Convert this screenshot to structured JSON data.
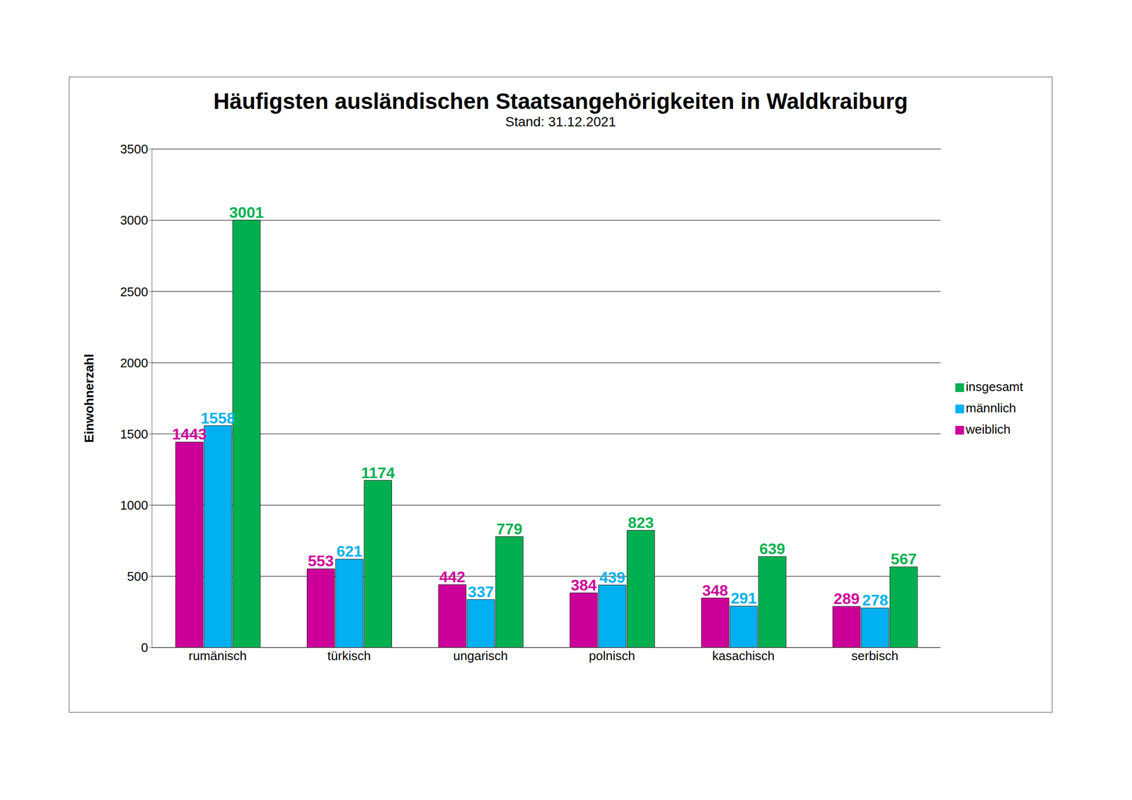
{
  "chart_data": {
    "type": "bar",
    "title": "Häufigsten ausländischen Staatsangehörigkeiten in Waldkraiburg",
    "subtitle": "Stand: 31.12.2021",
    "y_label": "Einwohnerzahl",
    "categories": [
      "rumänisch",
      "türkisch",
      "ungarisch",
      "polnisch",
      "kasachisch",
      "serbisch"
    ],
    "series": [
      {
        "name": "weiblich",
        "color": "#cc0099",
        "values": [
          1443,
          553,
          442,
          384,
          348,
          289
        ]
      },
      {
        "name": "männlich",
        "color": "#00b0f0",
        "values": [
          1558,
          621,
          337,
          439,
          291,
          278
        ]
      },
      {
        "name": "insgesamt",
        "color": "#00b050",
        "values": [
          3001,
          1174,
          779,
          823,
          639,
          567
        ]
      }
    ],
    "ylim": [
      0,
      3500
    ],
    "yticks": [
      0,
      500,
      1000,
      1500,
      2000,
      2500,
      3000,
      3500
    ],
    "grid": true,
    "legend": "right",
    "data_labels": true
  }
}
